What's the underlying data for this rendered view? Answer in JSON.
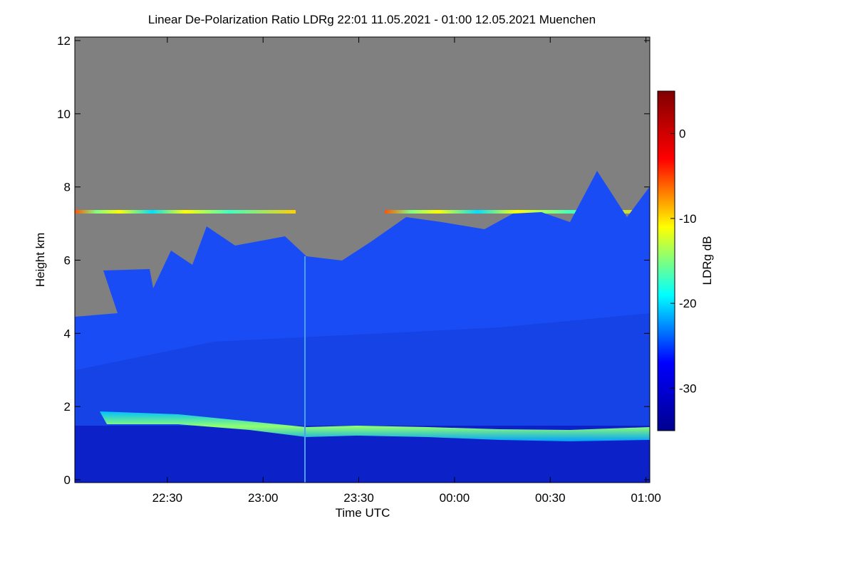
{
  "chart_data": {
    "type": "heatmap",
    "title": "Linear De-Polarization Ratio LDRg   22:01 11.05.2021 - 01:00 12.05.2021 Muenchen",
    "xlabel": "Time UTC",
    "ylabel": "Height km",
    "xlim": [
      22.0167,
      25.02
    ],
    "xticks": [
      {
        "value": 22.5,
        "label": "22:30"
      },
      {
        "value": 23,
        "label": "23:00"
      },
      {
        "value": 23.5,
        "label": "23:30"
      },
      {
        "value": 24,
        "label": "00:00"
      },
      {
        "value": 24.5,
        "label": "00:30"
      },
      {
        "value": 25,
        "label": "01:00"
      }
    ],
    "ylim": [
      0,
      12
    ],
    "yticks": [
      0,
      2,
      4,
      6,
      8,
      10,
      12
    ],
    "colorbar_label": "LDRg dB",
    "clim": [
      -35,
      5
    ],
    "cticks": [
      -30,
      -20,
      -10,
      0
    ],
    "colormap": "jet"
  }
}
